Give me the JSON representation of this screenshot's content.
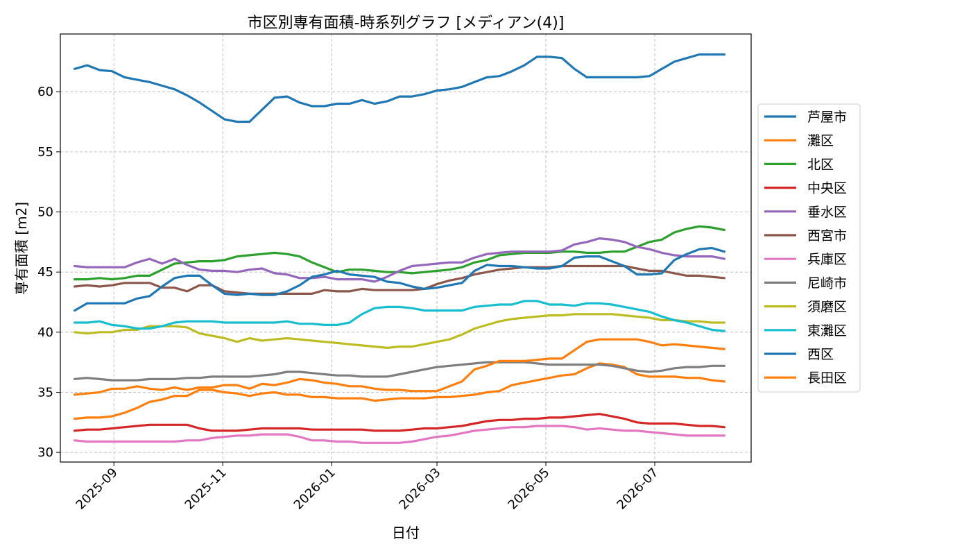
{
  "chart_data": {
    "type": "line",
    "title": "市区別専有面積-時系列グラフ [メディアン(4)]",
    "xlabel": "日付",
    "ylabel": "専有面積 [m2]",
    "x_ticks": [
      "2025-09",
      "2025-11",
      "2026-01",
      "2026-03",
      "2026-05",
      "2026-07"
    ],
    "y_ticks": [
      30,
      35,
      40,
      45,
      50,
      55,
      60
    ],
    "xlim": [
      "2025-08-02",
      "2026-08-24"
    ],
    "ylim": [
      29.2,
      64.8
    ],
    "grid": true,
    "legend_position": "outside-right",
    "x": [
      "2025-08-10",
      "2025-08-17",
      "2025-08-24",
      "2025-08-31",
      "2025-09-07",
      "2025-09-14",
      "2025-09-21",
      "2025-09-28",
      "2025-10-05",
      "2025-10-12",
      "2025-10-19",
      "2025-10-26",
      "2025-11-02",
      "2025-11-09",
      "2025-11-16",
      "2025-11-23",
      "2025-11-30",
      "2025-12-07",
      "2025-12-14",
      "2025-12-21",
      "2025-12-28",
      "2026-01-04",
      "2026-01-11",
      "2026-01-18",
      "2026-01-25",
      "2026-02-01",
      "2026-02-08",
      "2026-02-15",
      "2026-02-22",
      "2026-03-01",
      "2026-03-08",
      "2026-03-15",
      "2026-03-22",
      "2026-03-29",
      "2026-04-05",
      "2026-04-12",
      "2026-04-19",
      "2026-04-26",
      "2026-05-03",
      "2026-05-10",
      "2026-05-17",
      "2026-05-24",
      "2026-05-31",
      "2026-06-07",
      "2026-06-14",
      "2026-06-21",
      "2026-06-28",
      "2026-07-05",
      "2026-07-12",
      "2026-07-19",
      "2026-07-26",
      "2026-08-02",
      "2026-08-09"
    ],
    "series": [
      {
        "name": "芦屋市",
        "color": "#1f77b4",
        "values": [
          61.9,
          62.2,
          61.8,
          61.7,
          61.2,
          61.0,
          60.8,
          60.5,
          60.2,
          59.7,
          59.1,
          58.4,
          57.7,
          57.5,
          57.5,
          58.5,
          59.5,
          59.6,
          59.1,
          58.8,
          58.8,
          59.0,
          59.0,
          59.3,
          59.0,
          59.2,
          59.6,
          59.6,
          59.8,
          60.1,
          60.2,
          60.4,
          60.8,
          61.2,
          61.3,
          61.7,
          62.2,
          62.9,
          62.9,
          62.8,
          61.9,
          61.2,
          61.2,
          61.2,
          61.2,
          61.2,
          61.3,
          61.9,
          62.5,
          62.8,
          63.1,
          63.1,
          63.1
        ]
      },
      {
        "name": "灘区",
        "color": "#ff7f0e",
        "values": [
          32.8,
          32.9,
          32.9,
          33.0,
          33.3,
          33.7,
          34.2,
          34.4,
          34.7,
          34.7,
          35.2,
          35.2,
          35.0,
          34.9,
          34.7,
          34.9,
          35.0,
          34.8,
          34.8,
          34.6,
          34.6,
          34.5,
          34.5,
          34.5,
          34.3,
          34.4,
          34.5,
          34.5,
          34.5,
          34.6,
          34.6,
          34.7,
          34.8,
          35.0,
          35.1,
          35.6,
          35.8,
          36.0,
          36.2,
          36.4,
          36.5,
          37.0,
          37.4,
          37.3,
          37.1,
          36.5,
          36.3,
          36.3,
          36.3,
          36.2,
          36.2,
          36.0,
          35.9
        ]
      },
      {
        "name": "北区",
        "color": "#2ca02c",
        "values": [
          44.4,
          44.4,
          44.5,
          44.4,
          44.5,
          44.7,
          44.7,
          45.2,
          45.7,
          45.8,
          45.9,
          45.9,
          46.0,
          46.3,
          46.4,
          46.5,
          46.6,
          46.5,
          46.3,
          45.8,
          45.4,
          45.0,
          45.2,
          45.2,
          45.1,
          45.0,
          45.0,
          44.9,
          45.0,
          45.1,
          45.2,
          45.4,
          45.8,
          46.0,
          46.4,
          46.5,
          46.6,
          46.6,
          46.6,
          46.7,
          46.7,
          46.6,
          46.6,
          46.7,
          46.7,
          47.1,
          47.5,
          47.7,
          48.3,
          48.6,
          48.8,
          48.7,
          48.5
        ]
      },
      {
        "name": "中央区",
        "color": "#d62728",
        "values": [
          31.8,
          31.9,
          31.9,
          32.0,
          32.1,
          32.2,
          32.3,
          32.3,
          32.3,
          32.3,
          32.0,
          31.8,
          31.8,
          31.8,
          31.9,
          32.0,
          32.0,
          32.0,
          32.0,
          31.9,
          31.9,
          31.9,
          31.9,
          31.9,
          31.8,
          31.8,
          31.8,
          31.9,
          32.0,
          32.0,
          32.1,
          32.2,
          32.4,
          32.6,
          32.7,
          32.7,
          32.8,
          32.8,
          32.9,
          32.9,
          33.0,
          33.1,
          33.2,
          33.0,
          32.8,
          32.5,
          32.4,
          32.4,
          32.4,
          32.3,
          32.2,
          32.2,
          32.1
        ]
      },
      {
        "name": "垂水区",
        "color": "#9467bd",
        "values": [
          45.5,
          45.4,
          45.4,
          45.4,
          45.4,
          45.8,
          46.1,
          45.7,
          46.1,
          45.6,
          45.2,
          45.1,
          45.1,
          45.0,
          45.2,
          45.3,
          44.9,
          44.8,
          44.5,
          44.5,
          44.6,
          44.4,
          44.4,
          44.4,
          44.2,
          44.6,
          45.1,
          45.5,
          45.6,
          45.7,
          45.8,
          45.8,
          46.2,
          46.5,
          46.6,
          46.7,
          46.7,
          46.7,
          46.7,
          46.8,
          47.3,
          47.5,
          47.8,
          47.7,
          47.5,
          47.1,
          46.9,
          46.6,
          46.4,
          46.3,
          46.3,
          46.3,
          46.1
        ]
      },
      {
        "name": "西宮市",
        "color": "#8c564b",
        "values": [
          43.8,
          43.9,
          43.8,
          43.9,
          44.1,
          44.1,
          44.1,
          43.7,
          43.7,
          43.4,
          43.9,
          43.9,
          43.4,
          43.3,
          43.2,
          43.2,
          43.2,
          43.2,
          43.2,
          43.2,
          43.5,
          43.4,
          43.4,
          43.6,
          43.5,
          43.5,
          43.5,
          43.5,
          43.6,
          44.0,
          44.3,
          44.5,
          44.8,
          45.0,
          45.2,
          45.3,
          45.4,
          45.4,
          45.4,
          45.5,
          45.5,
          45.5,
          45.5,
          45.5,
          45.5,
          45.3,
          45.1,
          45.1,
          44.9,
          44.7,
          44.7,
          44.6,
          44.5
        ]
      },
      {
        "name": "兵庫区",
        "color": "#e377c2",
        "values": [
          31.0,
          30.9,
          30.9,
          30.9,
          30.9,
          30.9,
          30.9,
          30.9,
          30.9,
          31.0,
          31.0,
          31.2,
          31.3,
          31.4,
          31.4,
          31.5,
          31.5,
          31.5,
          31.3,
          31.0,
          31.0,
          30.9,
          30.9,
          30.8,
          30.8,
          30.8,
          30.8,
          30.9,
          31.1,
          31.3,
          31.4,
          31.6,
          31.8,
          31.9,
          32.0,
          32.1,
          32.1,
          32.2,
          32.2,
          32.2,
          32.1,
          31.9,
          32.0,
          31.9,
          31.8,
          31.8,
          31.7,
          31.6,
          31.5,
          31.4,
          31.4,
          31.4,
          31.4
        ]
      },
      {
        "name": "尼崎市",
        "color": "#7f7f7f",
        "values": [
          36.1,
          36.2,
          36.1,
          36.0,
          36.0,
          36.0,
          36.1,
          36.1,
          36.1,
          36.2,
          36.2,
          36.3,
          36.3,
          36.3,
          36.3,
          36.4,
          36.5,
          36.7,
          36.7,
          36.6,
          36.5,
          36.4,
          36.4,
          36.3,
          36.3,
          36.3,
          36.5,
          36.7,
          36.9,
          37.1,
          37.2,
          37.3,
          37.4,
          37.5,
          37.5,
          37.5,
          37.5,
          37.4,
          37.3,
          37.3,
          37.3,
          37.3,
          37.3,
          37.2,
          37.0,
          36.8,
          36.7,
          36.8,
          37.0,
          37.1,
          37.1,
          37.2,
          37.2
        ]
      },
      {
        "name": "須磨区",
        "color": "#bcbd22",
        "values": [
          40.0,
          39.9,
          40.0,
          40.0,
          40.2,
          40.2,
          40.5,
          40.5,
          40.5,
          40.4,
          39.9,
          39.7,
          39.5,
          39.2,
          39.5,
          39.3,
          39.4,
          39.5,
          39.4,
          39.3,
          39.2,
          39.1,
          39.0,
          38.9,
          38.8,
          38.7,
          38.8,
          38.8,
          39.0,
          39.2,
          39.4,
          39.8,
          40.3,
          40.6,
          40.9,
          41.1,
          41.2,
          41.3,
          41.4,
          41.4,
          41.5,
          41.5,
          41.5,
          41.5,
          41.4,
          41.3,
          41.2,
          41.0,
          41.0,
          40.9,
          40.9,
          40.8,
          40.8
        ]
      },
      {
        "name": "東灘区",
        "color": "#17becf",
        "values": [
          40.8,
          40.8,
          40.9,
          40.6,
          40.5,
          40.3,
          40.3,
          40.5,
          40.8,
          40.9,
          40.9,
          40.9,
          40.8,
          40.8,
          40.8,
          40.8,
          40.8,
          40.9,
          40.7,
          40.7,
          40.6,
          40.6,
          40.8,
          41.5,
          42.0,
          42.1,
          42.1,
          42.0,
          41.8,
          41.8,
          41.8,
          41.8,
          42.1,
          42.2,
          42.3,
          42.3,
          42.6,
          42.6,
          42.3,
          42.3,
          42.2,
          42.4,
          42.4,
          42.3,
          42.1,
          41.9,
          41.7,
          41.3,
          41.0,
          40.8,
          40.5,
          40.2,
          40.1
        ]
      },
      {
        "name": "西区",
        "color": "#1f77b4",
        "values": [
          41.8,
          42.4,
          42.4,
          42.4,
          42.4,
          42.8,
          43.0,
          43.8,
          44.5,
          44.7,
          44.7,
          43.9,
          43.2,
          43.1,
          43.2,
          43.1,
          43.1,
          43.4,
          43.9,
          44.6,
          44.8,
          45.1,
          44.8,
          44.7,
          44.6,
          44.2,
          44.1,
          43.8,
          43.6,
          43.7,
          43.9,
          44.1,
          45.1,
          45.6,
          45.5,
          45.5,
          45.4,
          45.3,
          45.3,
          45.5,
          46.2,
          46.3,
          46.3,
          45.9,
          45.5,
          44.8,
          44.8,
          44.9,
          46.0,
          46.5,
          46.9,
          47.0,
          46.7
        ]
      },
      {
        "name": "長田区",
        "color": "#ff7f0e",
        "values": [
          34.8,
          34.9,
          35.0,
          35.3,
          35.3,
          35.5,
          35.3,
          35.2,
          35.4,
          35.2,
          35.4,
          35.4,
          35.6,
          35.6,
          35.3,
          35.7,
          35.6,
          35.8,
          36.1,
          36.0,
          35.8,
          35.7,
          35.5,
          35.5,
          35.3,
          35.2,
          35.2,
          35.1,
          35.1,
          35.1,
          35.5,
          35.9,
          36.9,
          37.2,
          37.6,
          37.6,
          37.6,
          37.7,
          37.8,
          37.8,
          38.5,
          39.2,
          39.4,
          39.4,
          39.4,
          39.4,
          39.2,
          38.9,
          39.0,
          38.9,
          38.8,
          38.7,
          38.6
        ]
      }
    ]
  }
}
